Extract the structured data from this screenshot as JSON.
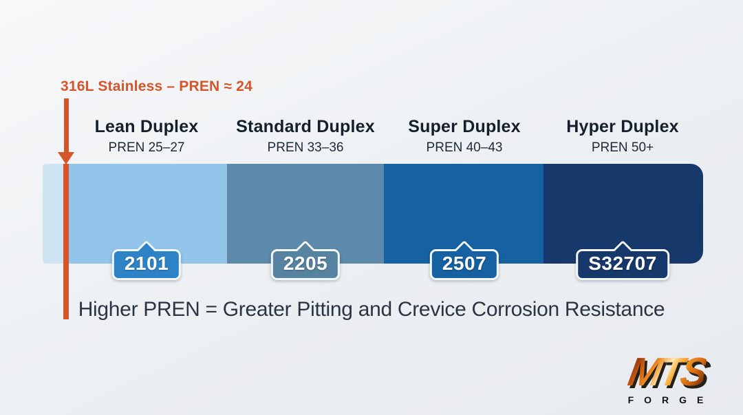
{
  "chart_data": {
    "type": "bar",
    "orientation": "horizontal",
    "categories": [
      "Lean Duplex",
      "Standard Duplex",
      "Super Duplex",
      "Hyper Duplex"
    ],
    "pren_ranges": [
      "25–27",
      "33–36",
      "40–43",
      "50+"
    ],
    "grade_labels": [
      "2101",
      "2205",
      "2507",
      "S32707"
    ],
    "reference_marker": {
      "label": "316L Stainless – PREN ≈ 24",
      "value": 24
    },
    "annotation": "Higher PREN = Greater Pitting and Crevice Corrosion Resistance",
    "legend": "none",
    "segment_colors": [
      "#93c5ea",
      "#5d8aab",
      "#1561a1",
      "#17386b"
    ]
  },
  "reference": {
    "label": "316L Stainless – PREN ≈ 24"
  },
  "grades": [
    {
      "name": "Lean Duplex",
      "pren": "PREN 25–27",
      "grade": "2101",
      "segment_color": "#93c5ea",
      "badge_color": "#2e82c6"
    },
    {
      "name": "Standard Duplex",
      "pren": "PREN 33–36",
      "grade": "2205",
      "segment_color": "#5d8aab",
      "badge_color": "#56839f"
    },
    {
      "name": "Super Duplex",
      "pren": "PREN 40–43",
      "grade": "2507",
      "segment_color": "#1561a1",
      "badge_color": "#1561a1"
    },
    {
      "name": "Hyper Duplex",
      "pren": "PREN 50+",
      "grade": "S32707",
      "segment_color": "#17386b",
      "badge_color": "#17386b"
    }
  ],
  "bar": {
    "lead_color": "#cfe4f3"
  },
  "caption": "Higher PREN = Greater Pitting and Crevice Corrosion Resistance",
  "logo": {
    "text": "MTS",
    "subtext": "FORGE"
  },
  "colors": {
    "accent_orange": "#d4562a",
    "heading": "#141f2b",
    "caption": "#2b3442"
  }
}
